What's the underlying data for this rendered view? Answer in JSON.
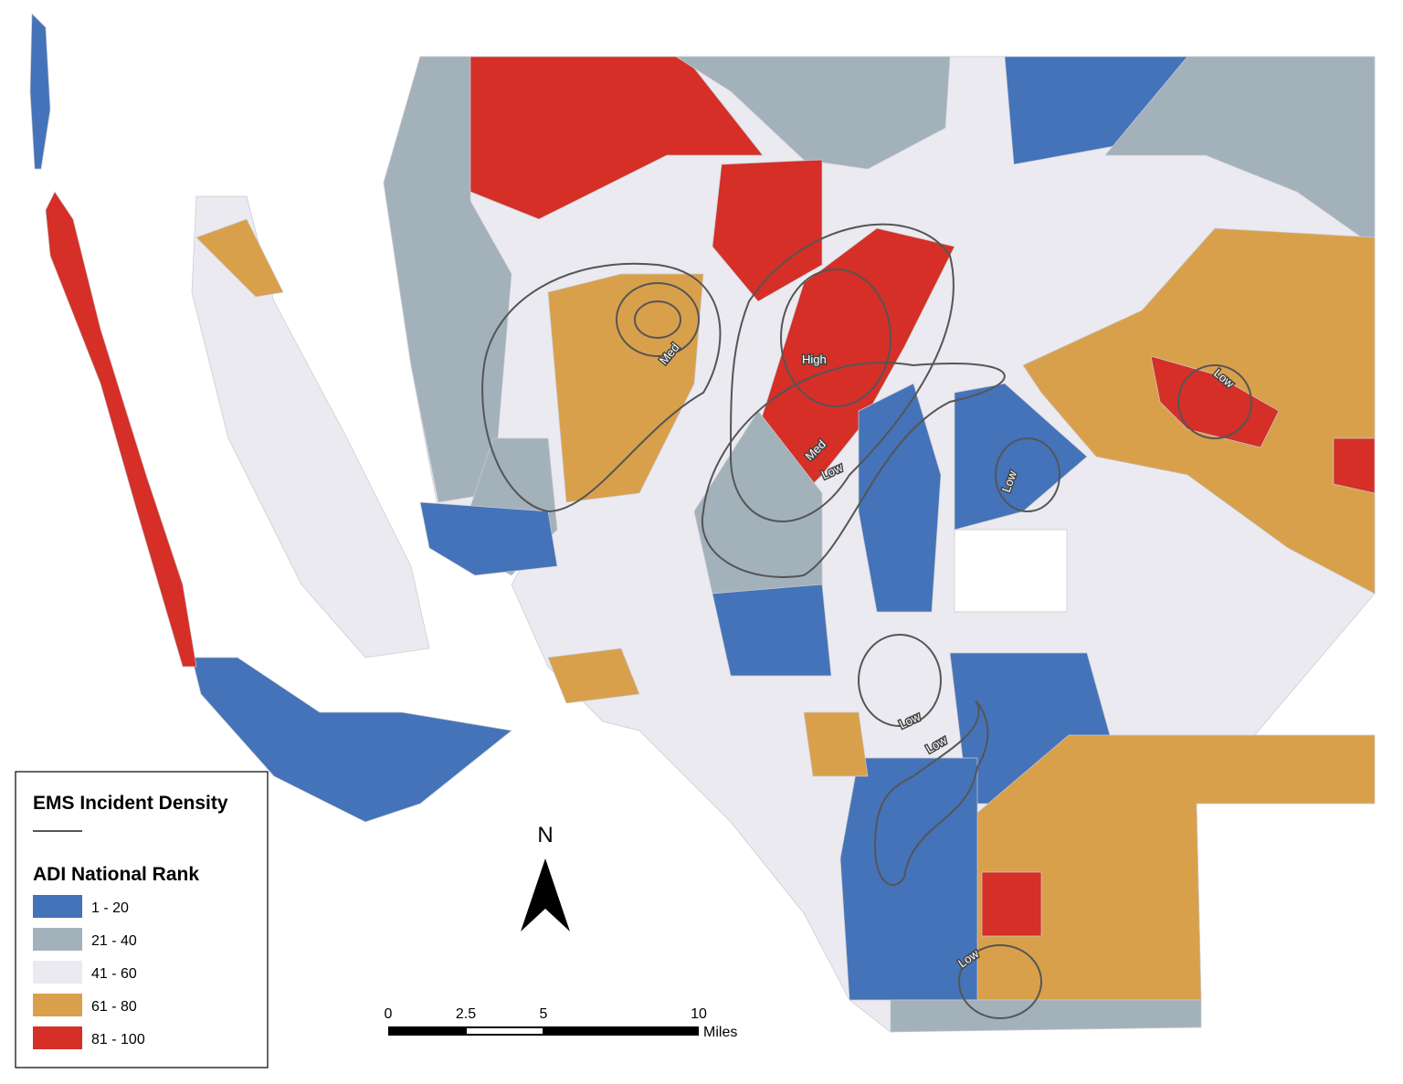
{
  "legend": {
    "density_title": "EMS Incident Density",
    "rank_title": "ADI National Rank",
    "items": [
      {
        "label": "1 - 20",
        "color": "#4473b9"
      },
      {
        "label": "21 - 40",
        "color": "#a3b1bb"
      },
      {
        "label": "41 - 60",
        "color": "#ebeaf0"
      },
      {
        "label": "61 - 80",
        "color": "#d9a04b"
      },
      {
        "label": "81 - 100",
        "color": "#d52f27"
      }
    ]
  },
  "north_arrow": {
    "label": "N"
  },
  "scale_bar": {
    "ticks": [
      "0",
      "2.5",
      "5",
      "10"
    ],
    "unit": "Miles"
  },
  "contour_labels": [
    "High",
    "Med",
    "Med",
    "Low",
    "Low",
    "Low",
    "Low",
    "Low",
    "Low"
  ]
}
